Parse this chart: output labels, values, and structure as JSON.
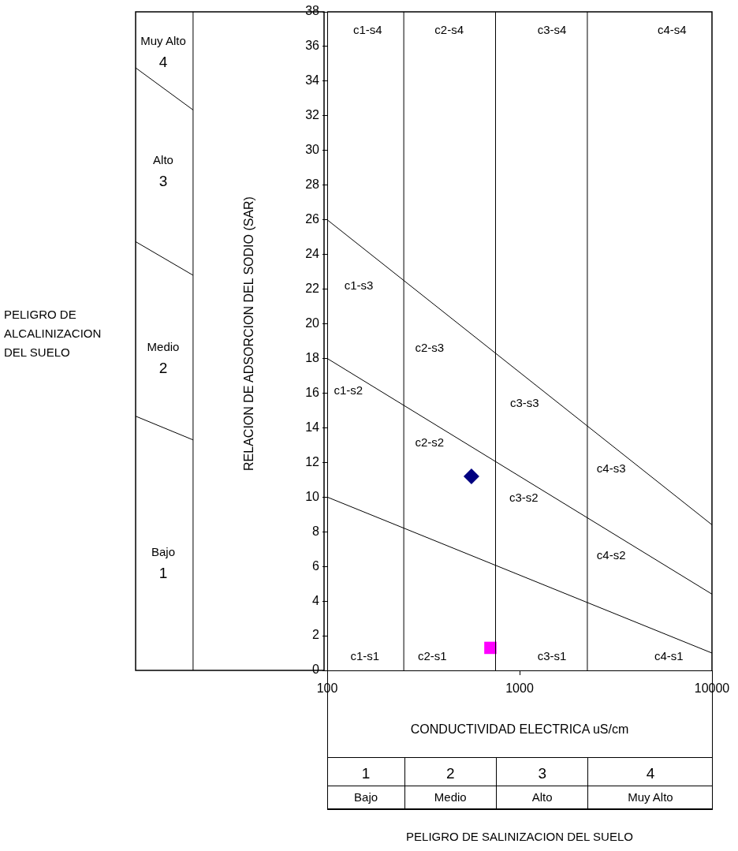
{
  "chart_data": {
    "type": "scatter",
    "ylabel": "RELACION DE ADSORCION DEL SODIO (SAR)",
    "xlabel": "CONDUCTIVIDAD ELECTRICA uS/cm",
    "log": "x",
    "legend": false,
    "xlim": [
      100,
      10000
    ],
    "xticks": [
      100,
      1000,
      10000
    ],
    "ylim": [
      0,
      38
    ],
    "yticks": [
      0,
      2,
      4,
      6,
      8,
      10,
      12,
      14,
      16,
      18,
      20,
      22,
      24,
      26,
      28,
      30,
      32,
      34,
      36,
      38
    ],
    "series": [
      {
        "type": "line",
        "color": "#000000",
        "marker": "none",
        "x": [
          100,
          10000
        ],
        "values": [
          26,
          8.4
        ]
      },
      {
        "type": "line",
        "color": "#000000",
        "marker": "none",
        "x": [
          100,
          10000
        ],
        "values": [
          18,
          4.4
        ]
      },
      {
        "type": "line",
        "color": "#000000",
        "marker": "none",
        "x": [
          100,
          10000
        ],
        "values": [
          10,
          1
        ]
      },
      {
        "type": "scatter",
        "color": "#000080",
        "marker": "diamond",
        "x": [
          562
        ],
        "values": [
          11.2
        ]
      },
      {
        "type": "scatter",
        "color": "#ff00ff",
        "marker": "square",
        "x": [
          705
        ],
        "values": [
          1.3
        ]
      }
    ],
    "ref_lines": [
      {
        "axis": "x",
        "value": 250,
        "color": "#000000"
      },
      {
        "axis": "x",
        "value": 750,
        "color": "#000000"
      },
      {
        "axis": "x",
        "value": 2250,
        "color": "#000000"
      }
    ],
    "annotations": [
      "PELIGRO DE\nALCALINIZACION\nDEL SUELO",
      "PELIGRO DE SALINIZACION DEL SUELO",
      "Muy Alto\n4",
      "Alto\n3",
      "Medio\n2",
      "Bajo\n1",
      "c1-s4",
      "c2-s4",
      "c3-s4",
      "c4-s4",
      "c1-s3",
      "c2-s3",
      "c3-s3",
      "c4-s3",
      "c1-s2",
      "c2-s2",
      "c3-s2",
      "c4-s2",
      "c1-s1",
      "c2-s1",
      "c3-s1",
      "c4-s1",
      "1",
      "2",
      "3",
      "4",
      "Bajo",
      "Medio",
      "Alto",
      "Muy Alto"
    ]
  }
}
